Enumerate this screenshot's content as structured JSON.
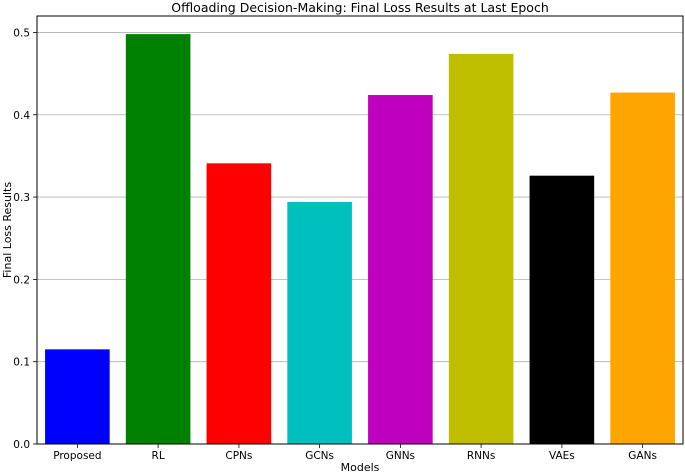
{
  "chart_data": {
    "type": "bar",
    "title": "Offloading Decision-Making: Final Loss Results at Last Epoch",
    "xlabel": "Models",
    "ylabel": "Final Loss Results",
    "categories": [
      "Proposed",
      "RL",
      "CPNs",
      "GCNs",
      "GNNs",
      "RNNs",
      "VAEs",
      "GANs"
    ],
    "values": [
      0.115,
      0.498,
      0.341,
      0.294,
      0.424,
      0.474,
      0.326,
      0.427
    ],
    "colors": [
      "#0000ff",
      "#008000",
      "#ff0000",
      "#00bfbf",
      "#bf00bf",
      "#bfbf00",
      "#000000",
      "#ffa500"
    ],
    "ylim": [
      0,
      0.52
    ],
    "yticks": [
      "0.0",
      "0.1",
      "0.2",
      "0.3",
      "0.4",
      "0.5"
    ],
    "grid": "y-axis"
  }
}
